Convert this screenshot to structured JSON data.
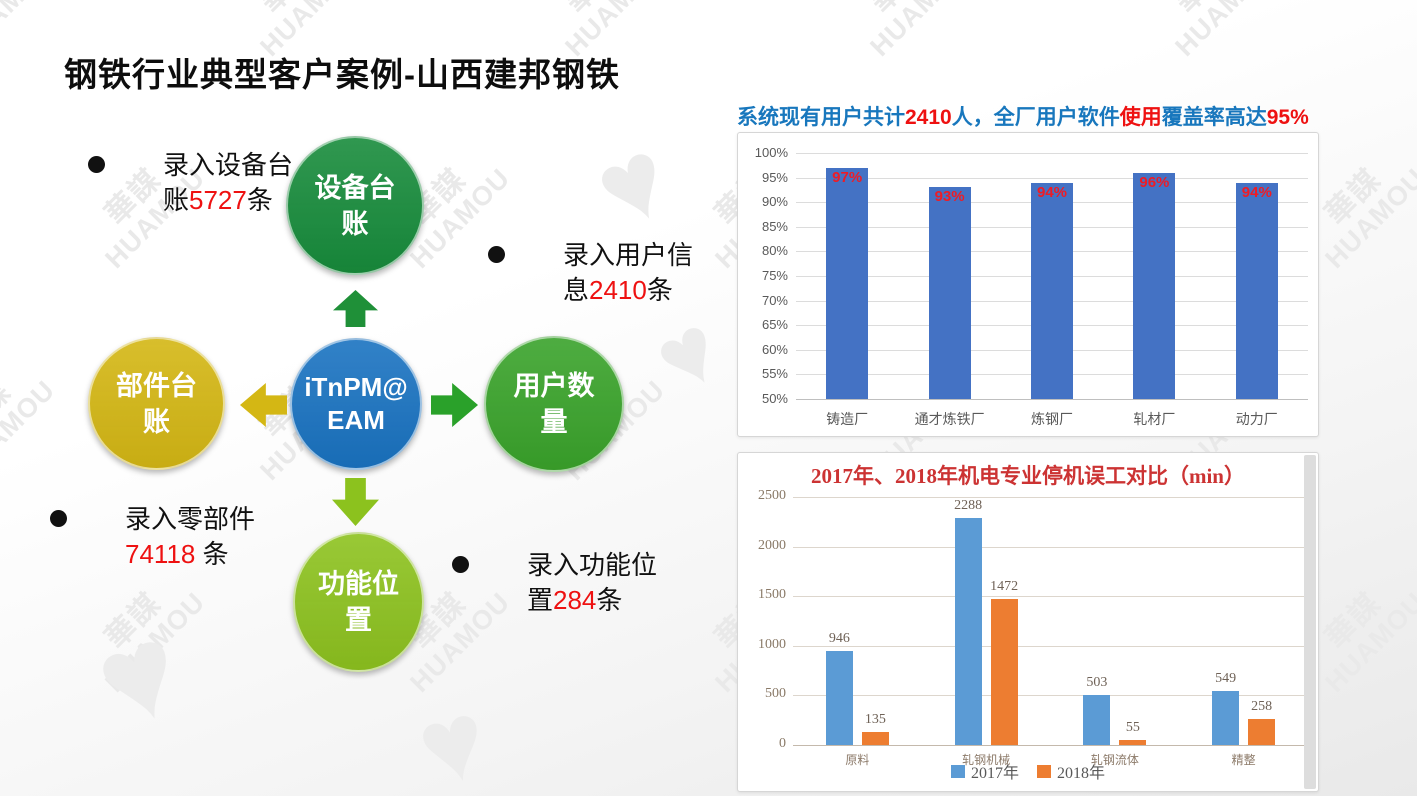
{
  "slide": {
    "title": "钢铁行业典型客户案例-山西建邦钢铁"
  },
  "watermark": {
    "cjk": "華謀",
    "latin": "HUAMOU"
  },
  "stats_line": {
    "segments": [
      {
        "text": "系统现有用户共计",
        "color": "#1877bd"
      },
      {
        "text": "2410",
        "color": "#ee1111"
      },
      {
        "text": "人，全厂用户软件",
        "color": "#1877bd"
      },
      {
        "text": "使用",
        "color": "#ee1111"
      },
      {
        "text": "覆盖率高达",
        "color": "#1877bd"
      },
      {
        "text": "95%",
        "color": "#ee1111"
      }
    ]
  },
  "diagram": {
    "center": {
      "line1": "iTnPM@",
      "line2": "EAM",
      "color": "#1a73c1"
    },
    "nodes": {
      "top": {
        "label": "设备台账",
        "color": "#188c3c"
      },
      "left": {
        "label": "部件台账",
        "color": "#d4b714"
      },
      "right": {
        "label": "用户数量",
        "color": "#3aa32b"
      },
      "bottom": {
        "label": "功能位置",
        "color": "#8dc21f"
      }
    },
    "arrow_colors": {
      "up": "#1f9038",
      "left": "#d4b714",
      "right": "#2aa12a",
      "down": "#8cc21e"
    },
    "number_color": "#ee1111",
    "bullets": [
      {
        "pre": "录入设备台账",
        "num": "5727",
        "post": "条"
      },
      {
        "pre": "录入用户信息",
        "num": "2410",
        "post": "条"
      },
      {
        "pre": "录入零部件",
        "num": "74118",
        "post": " 条"
      },
      {
        "pre": "录入功能位置",
        "num": "284",
        "post": "条"
      }
    ]
  },
  "chart_data": [
    {
      "type": "bar",
      "title": "",
      "categories": [
        "铸造厂",
        "通才炼铁厂",
        "炼钢厂",
        "轧材厂",
        "动力厂"
      ],
      "values": [
        97,
        93,
        94,
        96,
        94
      ],
      "value_labels": [
        "97%",
        "93%",
        "94%",
        "96%",
        "94%"
      ],
      "ylim": [
        50,
        100
      ],
      "ytick_step": 5,
      "ytick_labels": [
        "100%",
        "95%",
        "90%",
        "85%",
        "80%",
        "75%",
        "70%",
        "65%",
        "60%",
        "55%",
        "50%"
      ],
      "bar_color": "#4472c4",
      "value_label_color": "#ee1c25",
      "grid": true,
      "legend_position": "none"
    },
    {
      "type": "bar",
      "title": "2017年、2018年机电专业停机误工对比（min）",
      "title_color": "#cc3333",
      "categories": [
        "原料",
        "轧钢机械",
        "轧钢流体",
        "精整"
      ],
      "series": [
        {
          "name": "2017年",
          "color": "#5b9bd5",
          "values": [
            946,
            2288,
            503,
            549
          ]
        },
        {
          "name": "2018年",
          "color": "#ed7d31",
          "values": [
            135,
            1472,
            55,
            258
          ]
        }
      ],
      "ylim": [
        0,
        2500
      ],
      "ytick_step": 500,
      "ytick_labels": [
        "2500",
        "2000",
        "1500",
        "1000",
        "500",
        "0"
      ],
      "grid": true,
      "legend_position": "bottom"
    }
  ]
}
